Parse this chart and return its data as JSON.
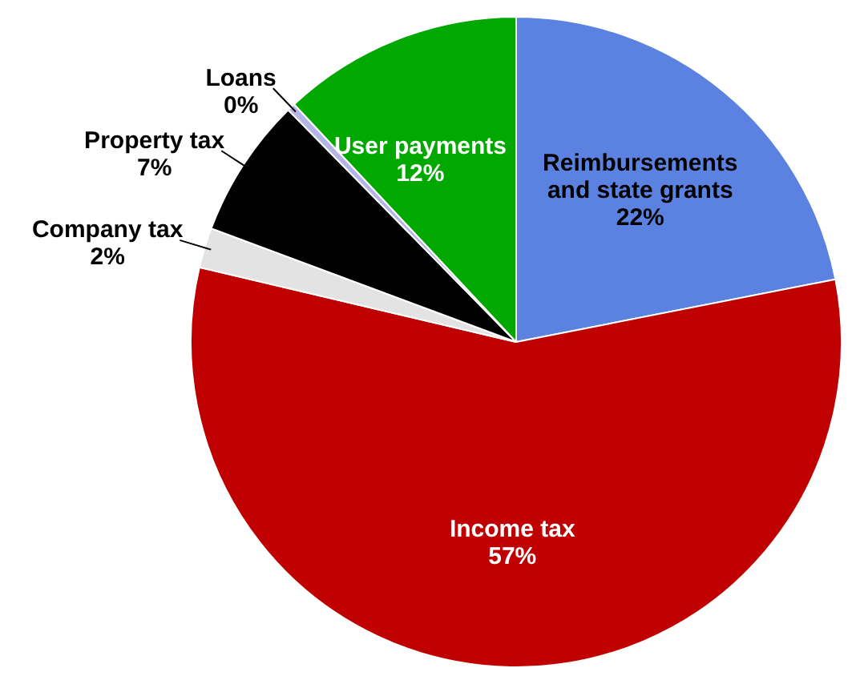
{
  "chart_data": {
    "type": "pie",
    "categories": [
      "Reimbursements and state grants",
      "Income tax",
      "Company tax",
      "Property tax",
      "Loans",
      "User payments"
    ],
    "values": [
      22,
      57,
      2,
      7,
      0.4,
      12
    ],
    "value_labels": [
      "22%",
      "57%",
      "2%",
      "7%",
      "0%",
      "12%"
    ],
    "colors": [
      "#5b82e0",
      "#c00000",
      "#e3e3e3",
      "#000000",
      "#b4b4e6",
      "#00a800"
    ],
    "data_labels": true,
    "legend": false
  }
}
